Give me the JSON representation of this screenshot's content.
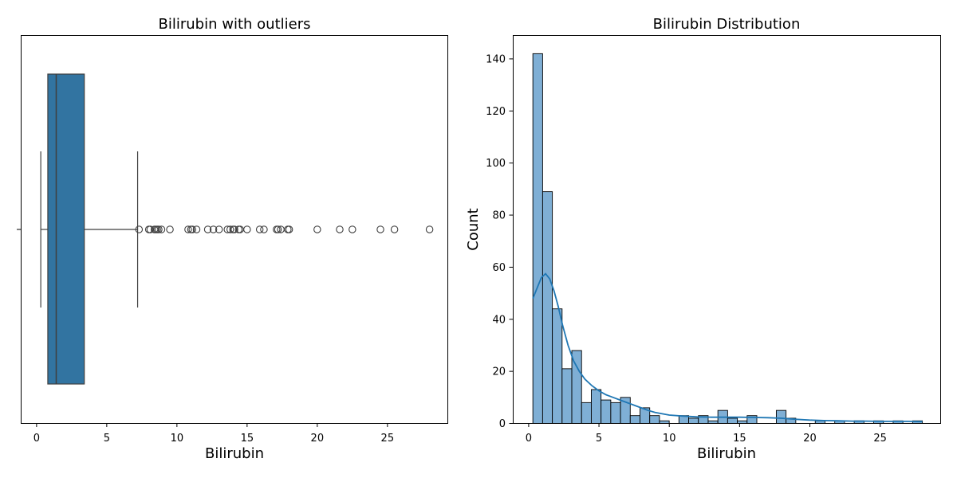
{
  "chart_data": [
    {
      "type": "box",
      "title": "Bilirubin with outliers",
      "xlabel": "Bilirubin",
      "ylabel": "",
      "xlim": [
        -1.1,
        29.3
      ],
      "xticks": [
        0,
        5,
        10,
        15,
        20,
        25
      ],
      "box": {
        "whisker_low": 0.3,
        "q1": 0.8,
        "median": 1.4,
        "q3": 3.4,
        "whisker_high": 7.2
      },
      "outliers": [
        7.3,
        8.0,
        8.1,
        8.4,
        8.5,
        8.6,
        8.7,
        8.9,
        9.5,
        10.8,
        11.0,
        11.1,
        11.4,
        12.2,
        12.6,
        13.0,
        13.6,
        13.8,
        14.0,
        14.1,
        14.4,
        14.5,
        15.0,
        15.9,
        16.2,
        17.1,
        17.2,
        17.4,
        17.9,
        18.0,
        20.0,
        21.6,
        22.5,
        24.5,
        25.5,
        28.0
      ],
      "color": "#3274a1"
    },
    {
      "type": "histogram",
      "title": "Bilirubin Distribution",
      "xlabel": "Bilirubin",
      "ylabel": "Count",
      "xlim": [
        -1.1,
        29.3
      ],
      "ylim": [
        0,
        149
      ],
      "xticks": [
        0,
        5,
        10,
        15,
        20,
        25
      ],
      "yticks": [
        0,
        20,
        40,
        60,
        80,
        100,
        120,
        140
      ],
      "bin_start": 0.3,
      "bin_width": 0.6925,
      "counts": [
        142,
        89,
        44,
        21,
        28,
        8,
        13,
        9,
        8,
        10,
        3,
        6,
        3,
        1,
        0,
        3,
        2,
        3,
        1,
        5,
        2,
        1,
        3,
        0,
        0,
        5,
        2,
        0,
        0,
        1,
        0,
        1,
        0,
        1,
        0,
        1,
        0,
        1,
        0,
        1
      ],
      "kde": [
        [
          0.3,
          48
        ],
        [
          0.6,
          52
        ],
        [
          0.9,
          56
        ],
        [
          1.2,
          57.5
        ],
        [
          1.5,
          55.5
        ],
        [
          1.8,
          51
        ],
        [
          2.1,
          45
        ],
        [
          2.4,
          38
        ],
        [
          2.8,
          30
        ],
        [
          3.2,
          24
        ],
        [
          3.6,
          20
        ],
        [
          4.0,
          17
        ],
        [
          4.5,
          14.5
        ],
        [
          5.0,
          12.5
        ],
        [
          5.5,
          11
        ],
        [
          6.0,
          10
        ],
        [
          6.5,
          9
        ],
        [
          7.0,
          8
        ],
        [
          7.5,
          7
        ],
        [
          8.0,
          6
        ],
        [
          8.5,
          5
        ],
        [
          9.0,
          4.2
        ],
        [
          10.0,
          3.2
        ],
        [
          11.0,
          2.8
        ],
        [
          12.0,
          2.5
        ],
        [
          13.0,
          2.4
        ],
        [
          14.0,
          2.4
        ],
        [
          15.0,
          2.4
        ],
        [
          16.0,
          2.3
        ],
        [
          17.0,
          2.2
        ],
        [
          18.0,
          2.0
        ],
        [
          19.0,
          1.6
        ],
        [
          20.0,
          1.3
        ],
        [
          21.0,
          1.1
        ],
        [
          22.0,
          1.0
        ],
        [
          23.0,
          0.9
        ],
        [
          24.0,
          0.9
        ],
        [
          25.0,
          0.8
        ],
        [
          26.0,
          0.8
        ],
        [
          27.0,
          0.8
        ],
        [
          28.0,
          0.7
        ]
      ],
      "bar_color": "#7fafd5",
      "line_color": "#1f77b4"
    }
  ]
}
